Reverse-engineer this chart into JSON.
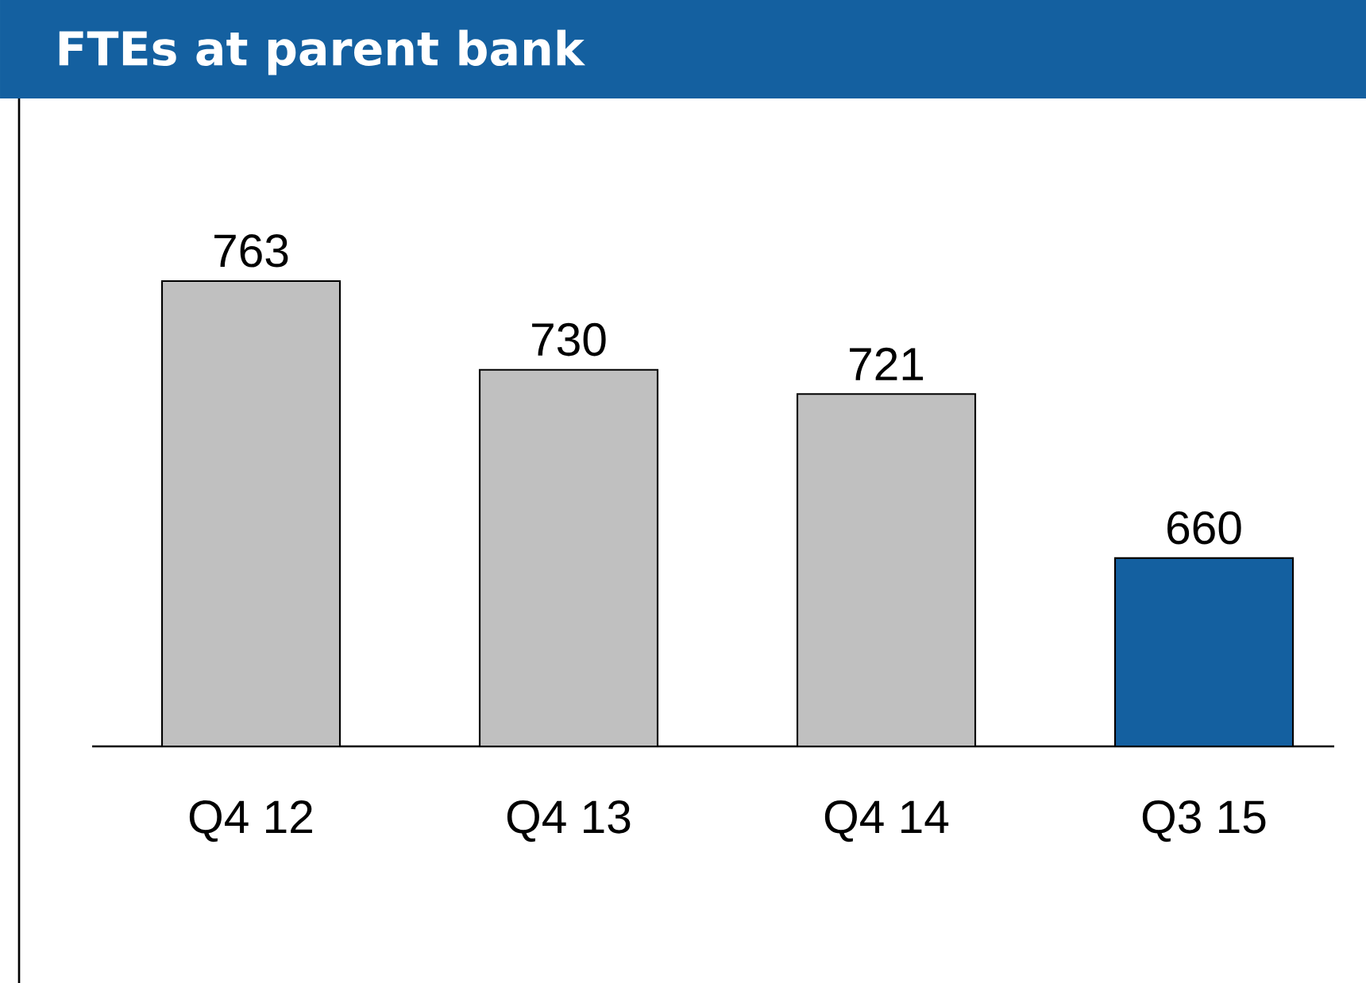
{
  "chart_data": {
    "type": "bar",
    "title": "FTEs at parent bank",
    "categories": [
      "Q4 12",
      "Q4 13",
      "Q4 14",
      "Q3 15"
    ],
    "values": [
      763,
      730,
      721,
      660
    ],
    "colors": [
      "#c0c0c0",
      "#c0c0c0",
      "#c0c0c0",
      "#1460a0"
    ],
    "ylim": [
      590,
      763
    ],
    "data_labels": true
  }
}
